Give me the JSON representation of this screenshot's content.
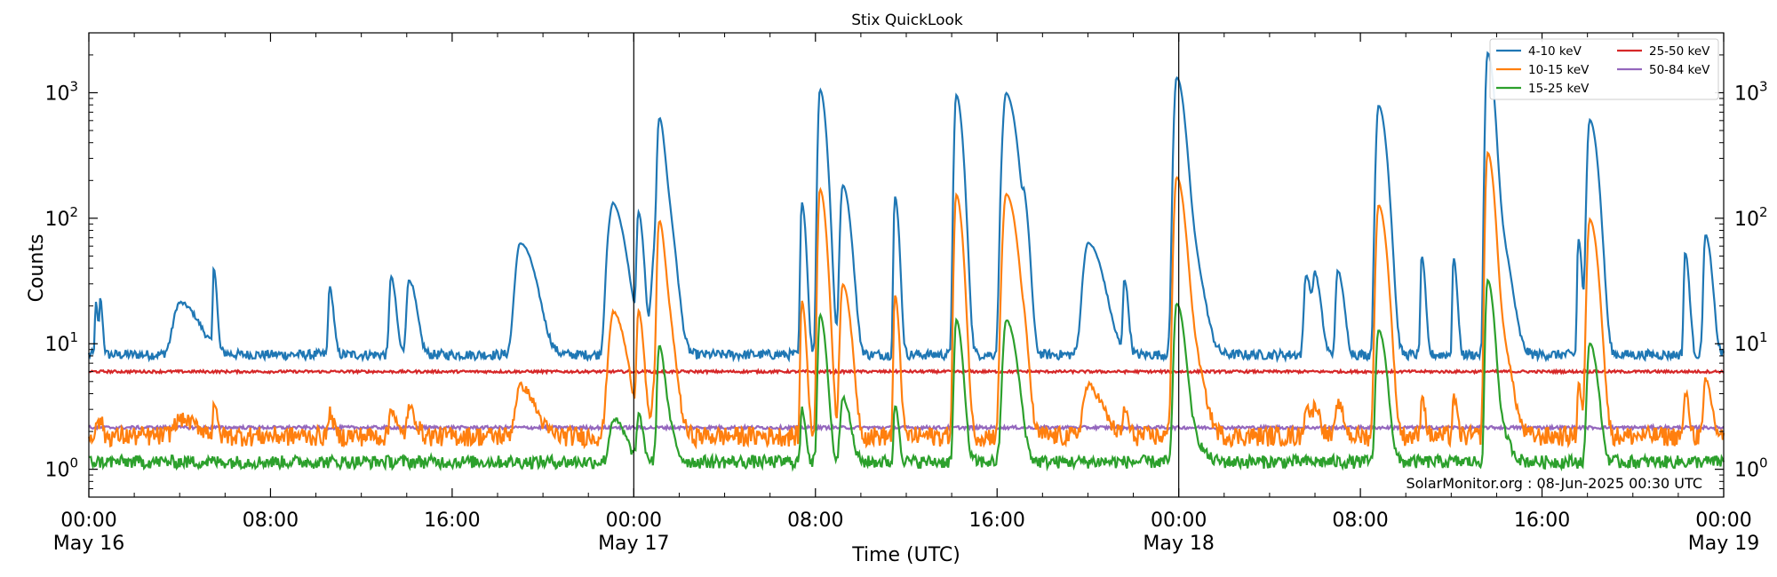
{
  "chart_data": {
    "type": "line",
    "title": "Stix QuickLook",
    "xlabel": "Time (UTC)",
    "ylabel": "Counts",
    "yscale": "log",
    "ylim": [
      0.6,
      3000
    ],
    "xlim_hours": [
      0,
      72
    ],
    "grid": false,
    "legend_position": "top-right",
    "annotation": "SolarMonitor.org : 08-Jun-2025 00:30 UTC",
    "day_separators_hours": [
      24,
      48
    ],
    "y_ticks": [
      {
        "base": "10",
        "exp": "0",
        "value": 1
      },
      {
        "base": "10",
        "exp": "1",
        "value": 10
      },
      {
        "base": "10",
        "exp": "2",
        "value": 100
      },
      {
        "base": "10",
        "exp": "3",
        "value": 1000
      }
    ],
    "x_ticks": [
      {
        "hour": 0,
        "time": "00:00",
        "date": "May 16"
      },
      {
        "hour": 8,
        "time": "08:00",
        "date": ""
      },
      {
        "hour": 16,
        "time": "16:00",
        "date": ""
      },
      {
        "hour": 24,
        "time": "00:00",
        "date": "May 17"
      },
      {
        "hour": 32,
        "time": "08:00",
        "date": ""
      },
      {
        "hour": 40,
        "time": "16:00",
        "date": ""
      },
      {
        "hour": 48,
        "time": "00:00",
        "date": "May 18"
      },
      {
        "hour": 56,
        "time": "08:00",
        "date": ""
      },
      {
        "hour": 64,
        "time": "16:00",
        "date": ""
      },
      {
        "hour": 72,
        "time": "00:00",
        "date": "May 19"
      }
    ],
    "series": [
      {
        "name": "4-10 keV",
        "color": "#1f77b4",
        "baseline": 8.2,
        "noise": 0.03
      },
      {
        "name": "10-15 keV",
        "color": "#ff7f0e",
        "baseline": 1.85,
        "noise": 0.06
      },
      {
        "name": "15-25 keV",
        "color": "#2ca02c",
        "baseline": 1.15,
        "noise": 0.04
      },
      {
        "name": "25-50 keV",
        "color": "#d62728",
        "baseline": 6.0,
        "noise": 0.008
      },
      {
        "name": "50-84 keV",
        "color": "#9467bd",
        "baseline": 2.15,
        "noise": 0.01
      }
    ],
    "flares": [
      {
        "hour": 0.3,
        "peak": 13,
        "width": 0.05
      },
      {
        "hour": 0.5,
        "peak": 14,
        "width": 0.05
      },
      {
        "hour": 4.0,
        "peak": 13,
        "width": 0.4
      },
      {
        "hour": 5.5,
        "peak": 31,
        "width": 0.06
      },
      {
        "hour": 10.6,
        "peak": 20,
        "width": 0.08
      },
      {
        "hour": 13.3,
        "peak": 26,
        "width": 0.1
      },
      {
        "hour": 14.1,
        "peak": 24,
        "width": 0.15
      },
      {
        "hour": 19.0,
        "peak": 55,
        "width": 0.3
      },
      {
        "hour": 22.9,
        "peak": 40,
        "width": 0.2
      },
      {
        "hour": 23.1,
        "peak": 90,
        "width": 0.25
      },
      {
        "hour": 24.2,
        "peak": 100,
        "width": 0.1
      },
      {
        "hour": 25.0,
        "peak": 60,
        "width": 0.25
      },
      {
        "hour": 25.1,
        "peak": 430,
        "width": 0.1
      },
      {
        "hour": 25.2,
        "peak": 160,
        "width": 0.2
      },
      {
        "hour": 31.4,
        "peak": 125,
        "width": 0.08
      },
      {
        "hour": 32.2,
        "peak": 1050,
        "width": 0.12
      },
      {
        "hour": 33.2,
        "peak": 175,
        "width": 0.15
      },
      {
        "hour": 35.5,
        "peak": 140,
        "width": 0.08
      },
      {
        "hour": 38.2,
        "peak": 950,
        "width": 0.12
      },
      {
        "hour": 40.2,
        "peak": 70,
        "width": 0.1
      },
      {
        "hour": 40.4,
        "peak": 950,
        "width": 0.2
      },
      {
        "hour": 41.2,
        "peak": 80,
        "width": 0.1
      },
      {
        "hour": 44.0,
        "peak": 55,
        "width": 0.3
      },
      {
        "hour": 45.6,
        "peak": 24,
        "width": 0.08
      },
      {
        "hour": 47.9,
        "peak": 1250,
        "width": 0.15
      },
      {
        "hour": 48.1,
        "peak": 100,
        "width": 0.3
      },
      {
        "hour": 53.6,
        "peak": 27,
        "width": 0.12
      },
      {
        "hour": 54.0,
        "peak": 25,
        "width": 0.12
      },
      {
        "hour": 55.0,
        "peak": 30,
        "width": 0.12
      },
      {
        "hour": 56.8,
        "peak": 780,
        "width": 0.15
      },
      {
        "hour": 58.7,
        "peak": 42,
        "width": 0.07
      },
      {
        "hour": 60.1,
        "peak": 40,
        "width": 0.07
      },
      {
        "hour": 61.6,
        "peak": 2050,
        "width": 0.12
      },
      {
        "hour": 61.9,
        "peak": 95,
        "width": 0.25
      },
      {
        "hour": 65.6,
        "peak": 60,
        "width": 0.07
      },
      {
        "hour": 66.1,
        "peak": 600,
        "width": 0.15
      },
      {
        "hour": 70.3,
        "peak": 45,
        "width": 0.08
      },
      {
        "hour": 71.2,
        "peak": 65,
        "width": 0.12
      }
    ]
  }
}
